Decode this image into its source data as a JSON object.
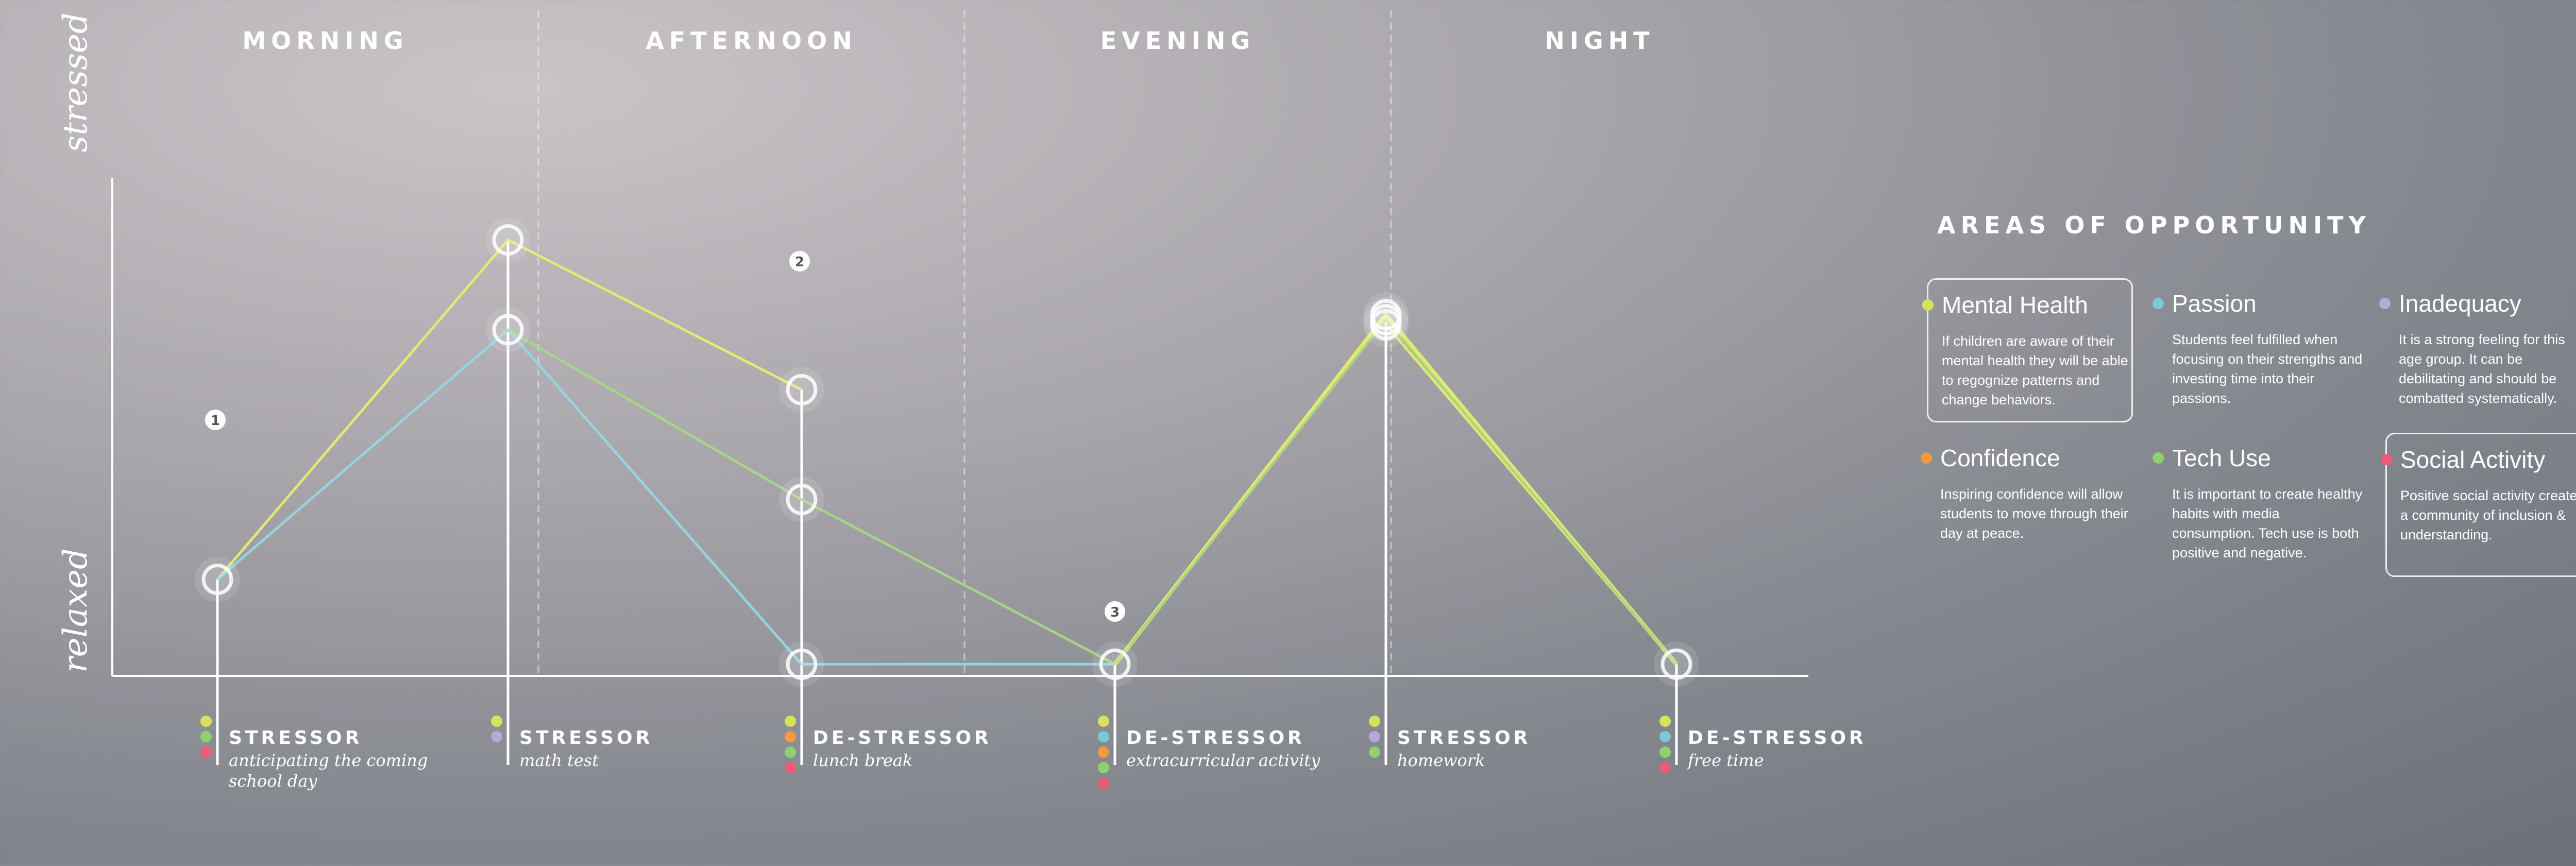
{
  "chart_data": {
    "type": "line",
    "y_scale": [
      "relaxed",
      "stressed"
    ],
    "periods": [
      "MORNING",
      "AFTERNOON",
      "EVENING",
      "NIGHT"
    ],
    "x": [
      "anticipating the coming school day",
      "math test",
      "lunch break",
      "extracurricular activity",
      "homework",
      "free time"
    ],
    "ylim": [
      0,
      100
    ],
    "series": [
      {
        "color": "#e6ec6e",
        "values": [
          18,
          86,
          56,
          null,
          69,
          1
        ]
      },
      {
        "color": "#92d7e4",
        "values": [
          18,
          68,
          1,
          1,
          null,
          null
        ]
      },
      {
        "color": "#a8d685",
        "values": [
          null,
          68,
          34,
          1,
          null,
          null
        ]
      }
    ],
    "peaks": [
      {
        "color": "#e6ec6e",
        "values": [
          null,
          null,
          null,
          1,
          71,
          1
        ]
      },
      {
        "color": "#a8d685",
        "values": [
          null,
          null,
          null,
          1,
          70,
          1
        ]
      }
    ],
    "events": [
      {
        "type": "STRESSOR",
        "desc_lines": [
          "anticipating the coming",
          "school day"
        ],
        "dots": [
          "#d6e25c",
          "#8fd071",
          "#ef5a78"
        ]
      },
      {
        "type": "STRESSOR",
        "desc_lines": [
          "math test"
        ],
        "dots": [
          "#d6e25c",
          "#b7a9d6"
        ]
      },
      {
        "type": "DE-STRESSOR",
        "desc_lines": [
          "lunch break"
        ],
        "dots": [
          "#d6e25c",
          "#f29a3c",
          "#8fd071",
          "#ef5a78"
        ]
      },
      {
        "type": "DE-STRESSOR",
        "desc_lines": [
          "extracurricular activity"
        ],
        "dots": [
          "#d6e25c",
          "#79c9d6",
          "#f29a3c",
          "#8fd071",
          "#ef5a78"
        ]
      },
      {
        "type": "STRESSOR",
        "desc_lines": [
          "homework"
        ],
        "dots": [
          "#d6e25c",
          "#b7a9d6",
          "#8fd071"
        ]
      },
      {
        "type": "DE-STRESSOR",
        "desc_lines": [
          "free time"
        ],
        "dots": [
          "#d6e25c",
          "#79c9d6",
          "#8fd071",
          "#ef5a78"
        ]
      }
    ],
    "markers": [
      "1",
      "2",
      "3"
    ]
  },
  "areas": {
    "title": "AREAS OF OPPORTUNITY",
    "items": [
      {
        "title": "Mental Health",
        "color": "#d6e25c",
        "boxed": true,
        "desc": "If children are aware of their mental health they will be able to regognize patterns and change behaviors."
      },
      {
        "title": "Passion",
        "color": "#79c9d6",
        "boxed": false,
        "desc": "Students feel fulfilled when focusing on their strengths and investing time into their passions."
      },
      {
        "title": "Inadequacy",
        "color": "#b7a9d6",
        "boxed": false,
        "desc": "It is a strong feeling for this age group. It can be debilitating and should be combatted systematically."
      },
      {
        "title": "Confidence",
        "color": "#f29a3c",
        "boxed": false,
        "desc": "Inspiring confidence will allow students to move through their day at peace."
      },
      {
        "title": "Tech Use",
        "color": "#8fd071",
        "boxed": false,
        "desc": "It is important to create healthy habits with media consumption. Tech use is both positive and negative."
      },
      {
        "title": "Social Activity",
        "color": "#ef5a78",
        "boxed": true,
        "desc": "Positive social activity creates a community of inclusion & understanding."
      }
    ]
  }
}
